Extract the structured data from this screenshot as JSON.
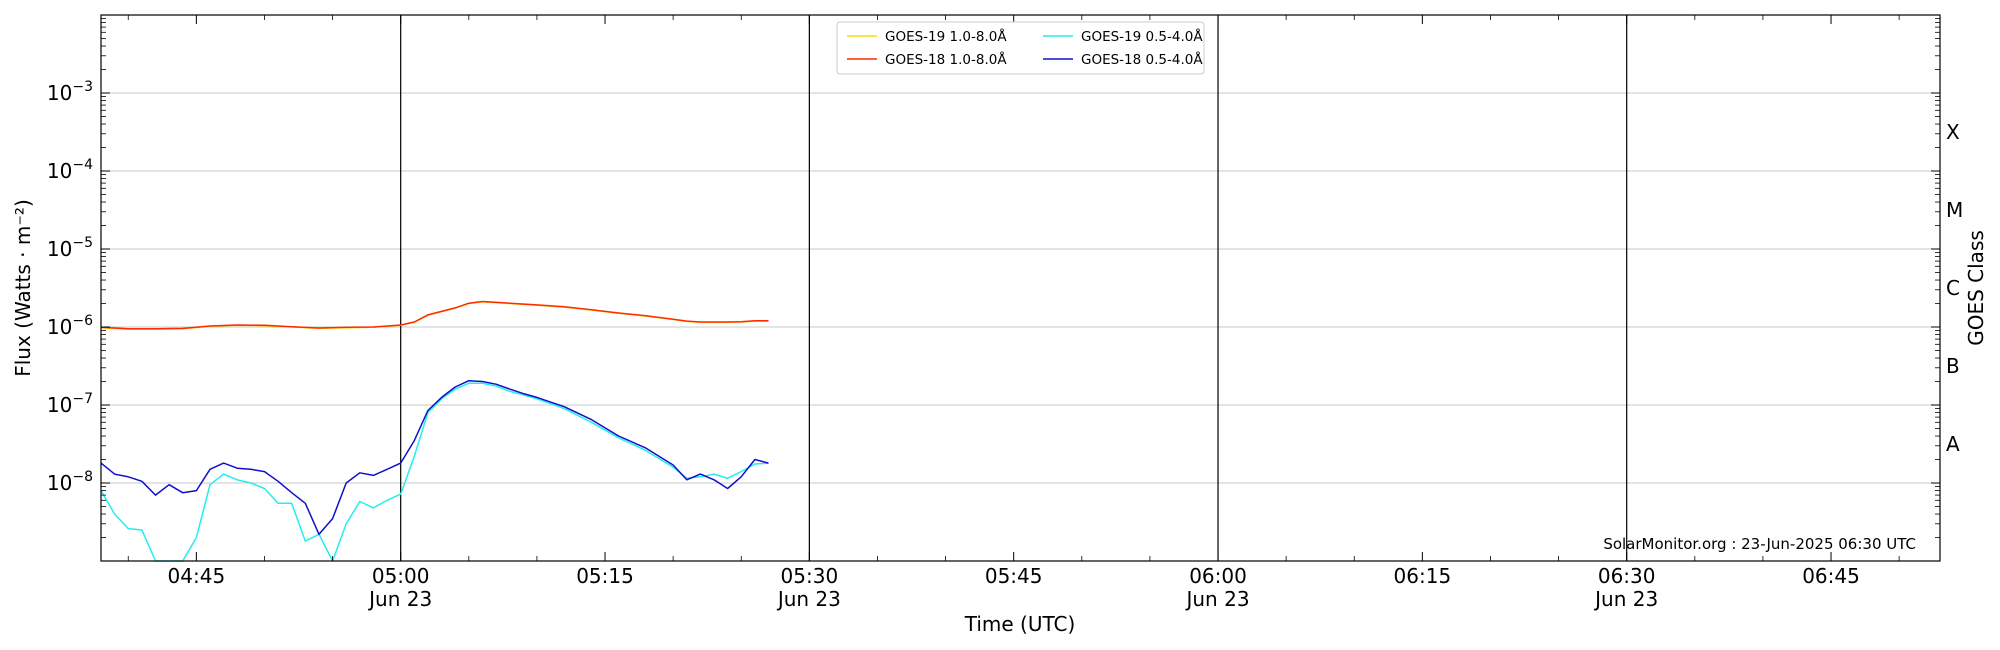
{
  "chart_data": {
    "type": "line",
    "ylabel": "Flux (Watts · m⁻²)",
    "xlabel": "Time (UTC)",
    "right_axis_label": "GOES Class",
    "credit": "SolarMonitor.org : 23-Jun-2025 06:30 UTC",
    "y_scale": "log",
    "ylim": [
      1e-09,
      0.01
    ],
    "y_ticks": [
      {
        "value": 1e-08,
        "base": "10",
        "exp": "−8"
      },
      {
        "value": 1e-07,
        "base": "10",
        "exp": "−7"
      },
      {
        "value": 1e-06,
        "base": "10",
        "exp": "−6"
      },
      {
        "value": 1e-05,
        "base": "10",
        "exp": "−5"
      },
      {
        "value": 0.0001,
        "base": "10",
        "exp": "−4"
      },
      {
        "value": 0.001,
        "base": "10",
        "exp": "−3"
      }
    ],
    "goes_classes": [
      {
        "label": "A",
        "value": 3.16e-08
      },
      {
        "label": "B",
        "value": 3.16e-07
      },
      {
        "label": "C",
        "value": 3.16e-06
      },
      {
        "label": "M",
        "value": 3.16e-05
      },
      {
        "label": "X",
        "value": 0.000316
      }
    ],
    "xlim": [
      "04:38",
      "06:53"
    ],
    "x_ticks": [
      {
        "time": "04:45",
        "label": "04:45",
        "date": ""
      },
      {
        "time": "05:00",
        "label": "05:00",
        "date": "Jun 23"
      },
      {
        "time": "05:15",
        "label": "05:15",
        "date": ""
      },
      {
        "time": "05:30",
        "label": "05:30",
        "date": "Jun 23"
      },
      {
        "time": "05:45",
        "label": "05:45",
        "date": ""
      },
      {
        "time": "06:00",
        "label": "06:00",
        "date": "Jun 23"
      },
      {
        "time": "06:15",
        "label": "06:15",
        "date": ""
      },
      {
        "time": "06:30",
        "label": "06:30",
        "date": "Jun 23"
      },
      {
        "time": "06:45",
        "label": "06:45",
        "date": ""
      }
    ],
    "vertical_lines": [
      "05:00",
      "05:30",
      "06:00",
      "06:30"
    ],
    "grid": "horizontal",
    "legend_position": "top-center",
    "series": [
      {
        "name": "GOES-19 1.0-8.0Å",
        "color": "#ffd700",
        "x": [
          "04:38",
          "04:40",
          "04:42",
          "04:44",
          "04:46",
          "04:48",
          "04:50",
          "04:52",
          "04:54",
          "04:56",
          "04:58",
          "05:00",
          "05:01",
          "05:02",
          "05:04",
          "05:05",
          "05:06",
          "05:08",
          "05:10",
          "05:12",
          "05:14",
          "05:16",
          "05:18",
          "05:20",
          "05:21",
          "05:22",
          "05:24",
          "05:25",
          "05:26",
          "05:27"
        ],
        "values": [
          9.8e-07,
          9.4e-07,
          9.4e-07,
          9.5e-07,
          1.02e-06,
          1.05e-06,
          1.04e-06,
          1e-06,
          9.6e-07,
          9.8e-07,
          9.9e-07,
          1.05e-06,
          1.15e-06,
          1.42e-06,
          1.75e-06,
          2e-06,
          2.1e-06,
          2e-06,
          1.9e-06,
          1.8e-06,
          1.65e-06,
          1.5e-06,
          1.38e-06,
          1.25e-06,
          1.18e-06,
          1.15e-06,
          1.15e-06,
          1.16e-06,
          1.19e-06,
          1.19e-06
        ]
      },
      {
        "name": "GOES-18 1.0-8.0Å",
        "color": "#ff2a00",
        "x": [
          "04:38",
          "04:40",
          "04:42",
          "04:44",
          "04:46",
          "04:48",
          "04:50",
          "04:52",
          "04:54",
          "04:56",
          "04:58",
          "05:00",
          "05:01",
          "05:02",
          "05:04",
          "05:05",
          "05:06",
          "05:08",
          "05:10",
          "05:12",
          "05:14",
          "05:16",
          "05:18",
          "05:20",
          "05:21",
          "05:22",
          "05:24",
          "05:25",
          "05:26",
          "05:27"
        ],
        "values": [
          9.9e-07,
          9.5e-07,
          9.5e-07,
          9.6e-07,
          1.03e-06,
          1.06e-06,
          1.05e-06,
          1.01e-06,
          9.7e-07,
          9.9e-07,
          1e-06,
          1.06e-06,
          1.16e-06,
          1.43e-06,
          1.76e-06,
          2.02e-06,
          2.12e-06,
          2.02e-06,
          1.92e-06,
          1.82e-06,
          1.66e-06,
          1.51e-06,
          1.39e-06,
          1.26e-06,
          1.19e-06,
          1.16e-06,
          1.16e-06,
          1.17e-06,
          1.2e-06,
          1.2e-06
        ]
      },
      {
        "name": "GOES-19 0.5-4.0Å",
        "color": "#22eeee",
        "x": [
          "04:38",
          "04:39",
          "04:40",
          "04:41",
          "04:42",
          "04:43",
          "04:44",
          "04:45",
          "04:46",
          "04:47",
          "04:48",
          "04:49",
          "04:50",
          "04:51",
          "04:52",
          "04:53",
          "04:54",
          "04:55",
          "04:56",
          "04:57",
          "04:58",
          "04:59",
          "05:00",
          "05:01",
          "05:02",
          "05:03",
          "05:04",
          "05:05",
          "05:06",
          "05:07",
          "05:08",
          "05:09",
          "05:10",
          "05:12",
          "05:14",
          "05:16",
          "05:18",
          "05:20",
          "05:21",
          "05:22",
          "05:23",
          "05:24",
          "05:25",
          "05:26",
          "05:27"
        ],
        "values": [
          8e-09,
          4e-09,
          2.6e-09,
          2.5e-09,
          1e-09,
          1e-09,
          1e-09,
          2e-09,
          9.5e-09,
          1.3e-08,
          1.1e-08,
          1e-08,
          8.5e-09,
          5.5e-09,
          5.5e-09,
          1.8e-09,
          2.2e-09,
          1e-09,
          3e-09,
          5.8e-09,
          4.8e-09,
          6e-09,
          7.2e-09,
          2.2e-08,
          8e-08,
          1.2e-07,
          1.6e-07,
          1.9e-07,
          1.9e-07,
          1.75e-07,
          1.5e-07,
          1.35e-07,
          1.2e-07,
          9e-08,
          6e-08,
          3.8e-08,
          2.6e-08,
          1.6e-08,
          1.15e-08,
          1.2e-08,
          1.3e-08,
          1.15e-08,
          1.4e-08,
          1.75e-08,
          1.8e-08
        ]
      },
      {
        "name": "GOES-18 0.5-4.0Å",
        "color": "#1010cc",
        "x": [
          "04:38",
          "04:39",
          "04:40",
          "04:41",
          "04:42",
          "04:43",
          "04:44",
          "04:45",
          "04:46",
          "04:47",
          "04:48",
          "04:49",
          "04:50",
          "04:51",
          "04:52",
          "04:53",
          "04:54",
          "04:55",
          "04:56",
          "04:57",
          "04:58",
          "04:59",
          "05:00",
          "05:01",
          "05:02",
          "05:03",
          "05:04",
          "05:05",
          "05:06",
          "05:07",
          "05:08",
          "05:09",
          "05:10",
          "05:12",
          "05:14",
          "05:16",
          "05:18",
          "05:20",
          "05:21",
          "05:22",
          "05:23",
          "05:24",
          "05:25",
          "05:26",
          "05:27"
        ],
        "values": [
          1.8e-08,
          1.3e-08,
          1.2e-08,
          1.05e-08,
          7e-09,
          9.5e-09,
          7.5e-09,
          8e-09,
          1.5e-08,
          1.8e-08,
          1.55e-08,
          1.5e-08,
          1.4e-08,
          1.05e-08,
          7.5e-09,
          5.5e-09,
          2.2e-09,
          3.5e-09,
          1e-08,
          1.35e-08,
          1.25e-08,
          1.5e-08,
          1.8e-08,
          3.5e-08,
          8.5e-08,
          1.25e-07,
          1.7e-07,
          2.05e-07,
          2e-07,
          1.85e-07,
          1.6e-07,
          1.4e-07,
          1.25e-07,
          9.5e-08,
          6.5e-08,
          4e-08,
          2.8e-08,
          1.7e-08,
          1.1e-08,
          1.3e-08,
          1.1e-08,
          8.5e-09,
          1.2e-08,
          2e-08,
          1.8e-08
        ]
      }
    ]
  }
}
